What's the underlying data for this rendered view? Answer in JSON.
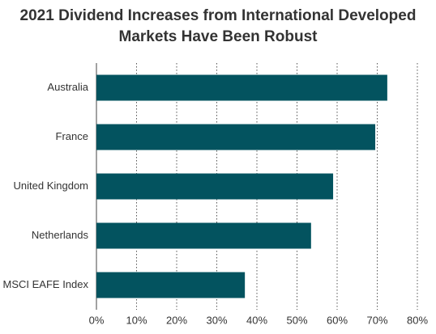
{
  "chart_data": {
    "type": "bar",
    "orientation": "horizontal",
    "title": [
      "2021 Dividend Increases from International Developed",
      "Markets Have Been Robust"
    ],
    "categories": [
      "Australia",
      "France",
      "United Kingdom",
      "Netherlands",
      "MSCI EAFE Index"
    ],
    "values": [
      72.5,
      69.5,
      59,
      53.5,
      37
    ],
    "color": "#03535f",
    "xlim": [
      0,
      80
    ],
    "xticks": [
      {
        "value": 0,
        "label": "0%"
      },
      {
        "value": 10,
        "label": "10%"
      },
      {
        "value": 20,
        "label": "20%"
      },
      {
        "value": 30,
        "label": "30%"
      },
      {
        "value": 40,
        "label": "40%"
      },
      {
        "value": 50,
        "label": "50%"
      },
      {
        "value": 60,
        "label": "60%"
      },
      {
        "value": 70,
        "label": "70%"
      },
      {
        "value": 80,
        "label": "80%"
      }
    ],
    "grid": true
  }
}
